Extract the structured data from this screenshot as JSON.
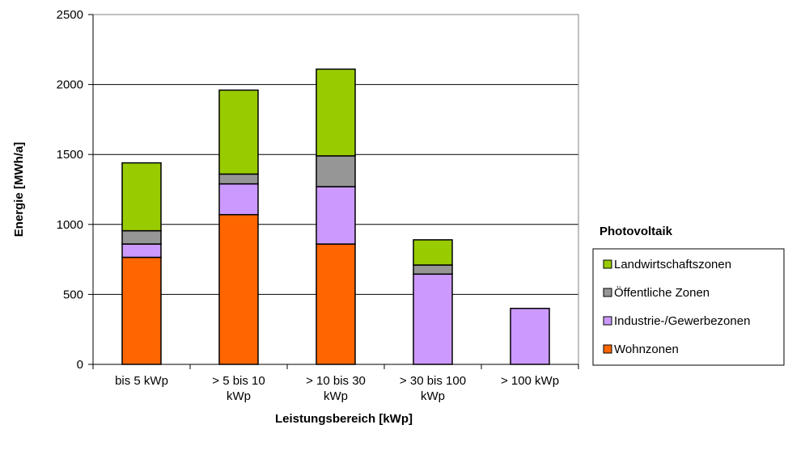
{
  "chart_data": {
    "type": "bar",
    "stacked": true,
    "categories": [
      [
        "bis 5 kWp"
      ],
      [
        "> 5 bis 10",
        "kWp"
      ],
      [
        "> 10 bis 30",
        "kWp"
      ],
      [
        "> 30 bis 100",
        "kWp"
      ],
      [
        "> 100 kWp"
      ]
    ],
    "series": [
      {
        "name": "Wohnzonen",
        "color": "#FF6600",
        "values": [
          765,
          1070,
          860,
          0,
          0
        ]
      },
      {
        "name": "Industrie-/Gewerbezonen",
        "color": "#CC99FF",
        "values": [
          95,
          220,
          410,
          645,
          400
        ]
      },
      {
        "name": "Öffentliche Zonen",
        "color": "#969696",
        "values": [
          95,
          70,
          220,
          65,
          0
        ]
      },
      {
        "name": "Landwirtschaftszonen",
        "color": "#99CC00",
        "values": [
          485,
          600,
          620,
          180,
          0
        ]
      }
    ],
    "ylabel": "Energie [MWh/a]",
    "xlabel": "Leistungsbereich [kWp]",
    "ylim": [
      0,
      2500
    ],
    "yticks": [
      0,
      500,
      1000,
      1500,
      2000,
      2500
    ],
    "grid": "horizontal",
    "legend": {
      "title": "Photovoltaik",
      "placement": "right",
      "order": [
        "Landwirtschaftszonen",
        "Öffentliche Zonen",
        "Industrie-/Gewerbezonen",
        "Wohnzonen"
      ]
    }
  }
}
